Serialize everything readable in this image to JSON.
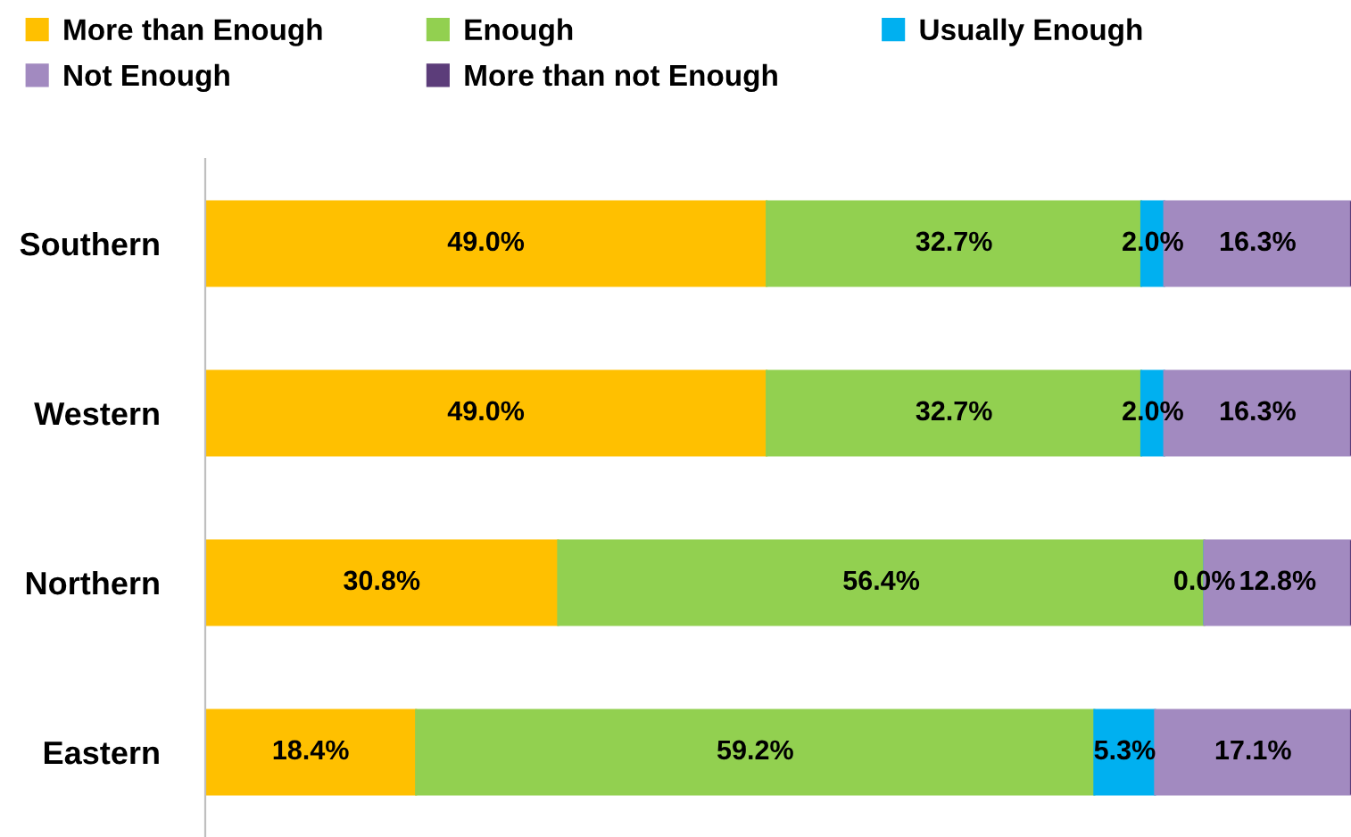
{
  "chart_data": {
    "type": "bar",
    "orientation": "horizontal",
    "stacked": true,
    "legend": "top",
    "categories": [
      "Southern",
      "Western",
      "Northern",
      "Eastern"
    ],
    "series": [
      {
        "name": "More than Enough",
        "color": "#ffc000",
        "values": [
          49.0,
          49.0,
          30.8,
          18.4
        ],
        "value_labels": [
          "49.0%",
          "49.0%",
          "30.8%",
          "18.4%"
        ]
      },
      {
        "name": "Enough",
        "color": "#92d050",
        "values": [
          32.7,
          32.7,
          56.4,
          59.2
        ],
        "value_labels": [
          "32.7%",
          "32.7%",
          "56.4%",
          "59.2%"
        ]
      },
      {
        "name": "Usually Enough",
        "color": "#00b0f0",
        "values": [
          2.0,
          2.0,
          0.0,
          5.3
        ],
        "value_labels": [
          "2.0%",
          "2.0%",
          "0.0%",
          "5.3%"
        ]
      },
      {
        "name": "Not Enough",
        "color": "#a28ac0",
        "values": [
          16.3,
          16.3,
          12.8,
          17.1
        ],
        "value_labels": [
          "16.3%",
          "16.3%",
          "12.8%",
          "17.1%"
        ]
      },
      {
        "name": "More than not Enough",
        "color": "#5c3d7a",
        "values": [
          0,
          0,
          0,
          0
        ],
        "value_labels": [
          null,
          null,
          null,
          null
        ]
      }
    ]
  }
}
